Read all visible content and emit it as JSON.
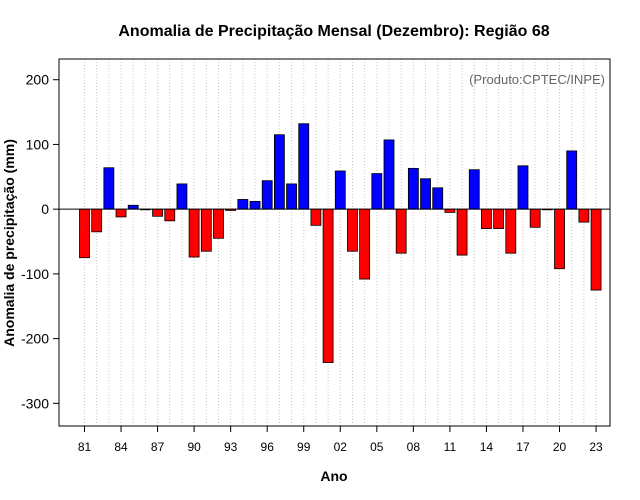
{
  "chart_data": {
    "type": "bar",
    "title": "Anomalia de Precipitação Mensal (Dezembro): Região 68",
    "annotation": "(Produto:CPTEC/INPE)",
    "xlabel": "Ano",
    "ylabel": "Anomalia de precipitação (mm)",
    "ylim": [
      -335,
      232
    ],
    "yticks": [
      200,
      100,
      0,
      -100,
      -200,
      -300
    ],
    "xticks": [
      "81",
      "84",
      "87",
      "90",
      "93",
      "96",
      "99",
      "02",
      "05",
      "08",
      "11",
      "14",
      "17",
      "20",
      "23"
    ],
    "grid": "vertical-dotted",
    "positive_color": "#0000ff",
    "negative_color": "#ff0000",
    "categories": [
      "1981",
      "1982",
      "1983",
      "1984",
      "1985",
      "1986",
      "1987",
      "1988",
      "1989",
      "1990",
      "1991",
      "1992",
      "1993",
      "1994",
      "1995",
      "1996",
      "1997",
      "1998",
      "1999",
      "2000",
      "2001",
      "2002",
      "2003",
      "2004",
      "2005",
      "2006",
      "2007",
      "2008",
      "2009",
      "2010",
      "2011",
      "2012",
      "2013",
      "2014",
      "2015",
      "2016",
      "2017",
      "2018",
      "2019",
      "2020",
      "2021",
      "2022",
      "2023"
    ],
    "values": [
      -75,
      -35,
      64,
      -12,
      6,
      -1,
      -11,
      -18,
      39,
      -74,
      -65,
      -45,
      -2,
      15,
      12,
      44,
      115,
      39,
      132,
      -25,
      -237,
      59,
      -65,
      -108,
      55,
      107,
      -68,
      63,
      47,
      33,
      -5,
      -71,
      61,
      -30,
      -30,
      -68,
      67,
      -28,
      -1,
      -92,
      90,
      -20,
      -125
    ]
  }
}
